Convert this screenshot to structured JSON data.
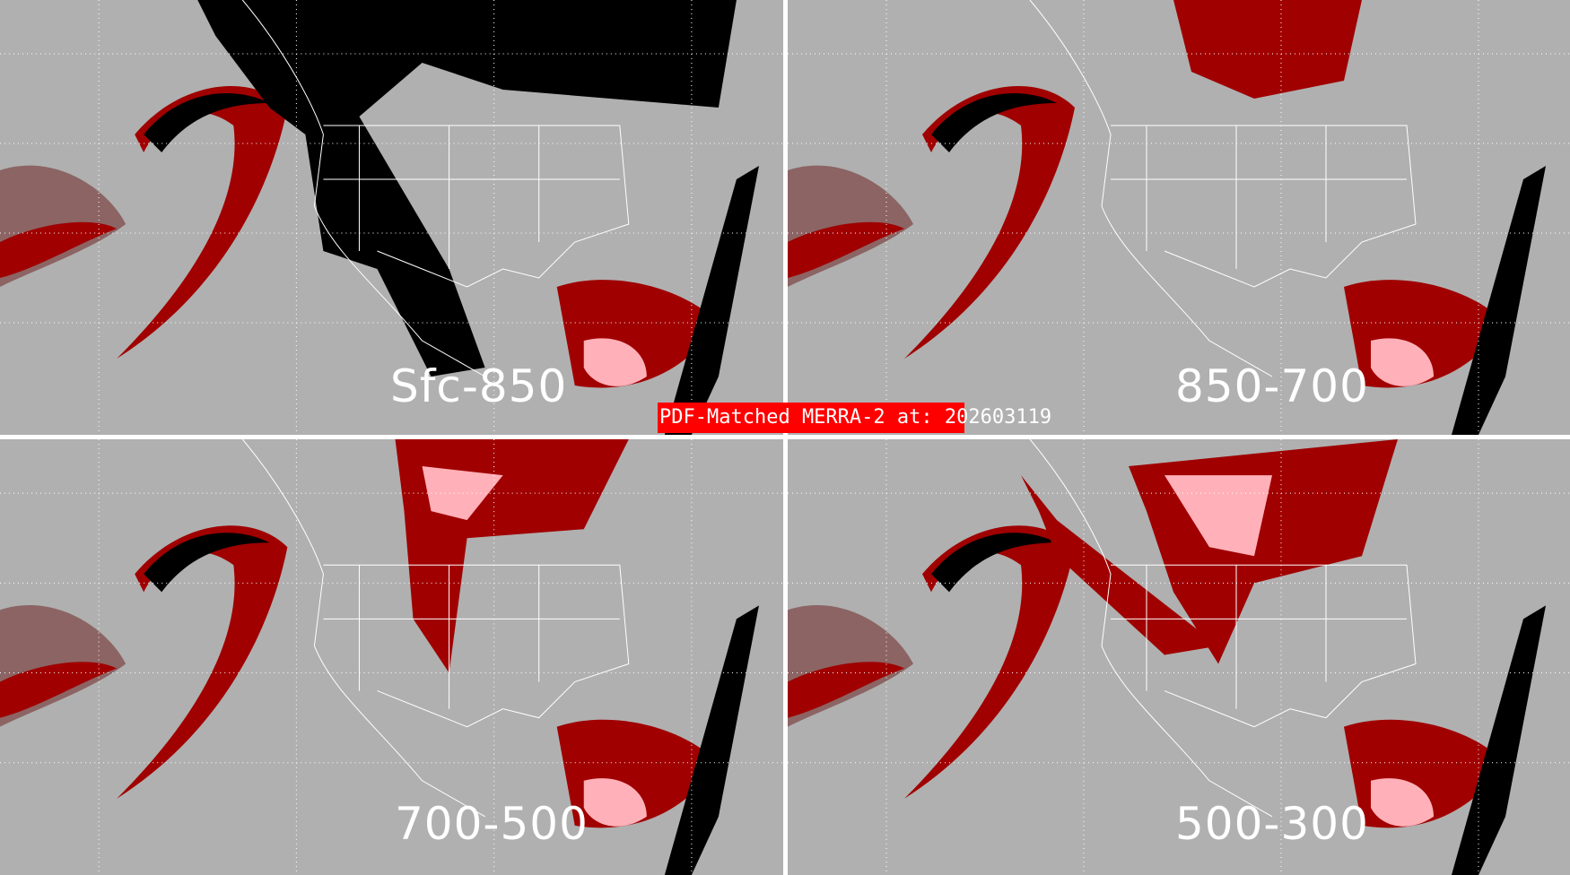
{
  "title": "PDF-Matched MERRA-2 at: 202603119",
  "panels": [
    {
      "label": "Sfc-850"
    },
    {
      "label": "850-700"
    },
    {
      "label": "700-500"
    },
    {
      "label": "500-300"
    }
  ],
  "colors": {
    "background": "#b0b0b0",
    "dark_red": "#a00000",
    "red": "#ff0000",
    "pink": "#ffb0b8",
    "brown_gray": "#8c6464",
    "black": "#000000",
    "coastlines": "#ffffff"
  }
}
